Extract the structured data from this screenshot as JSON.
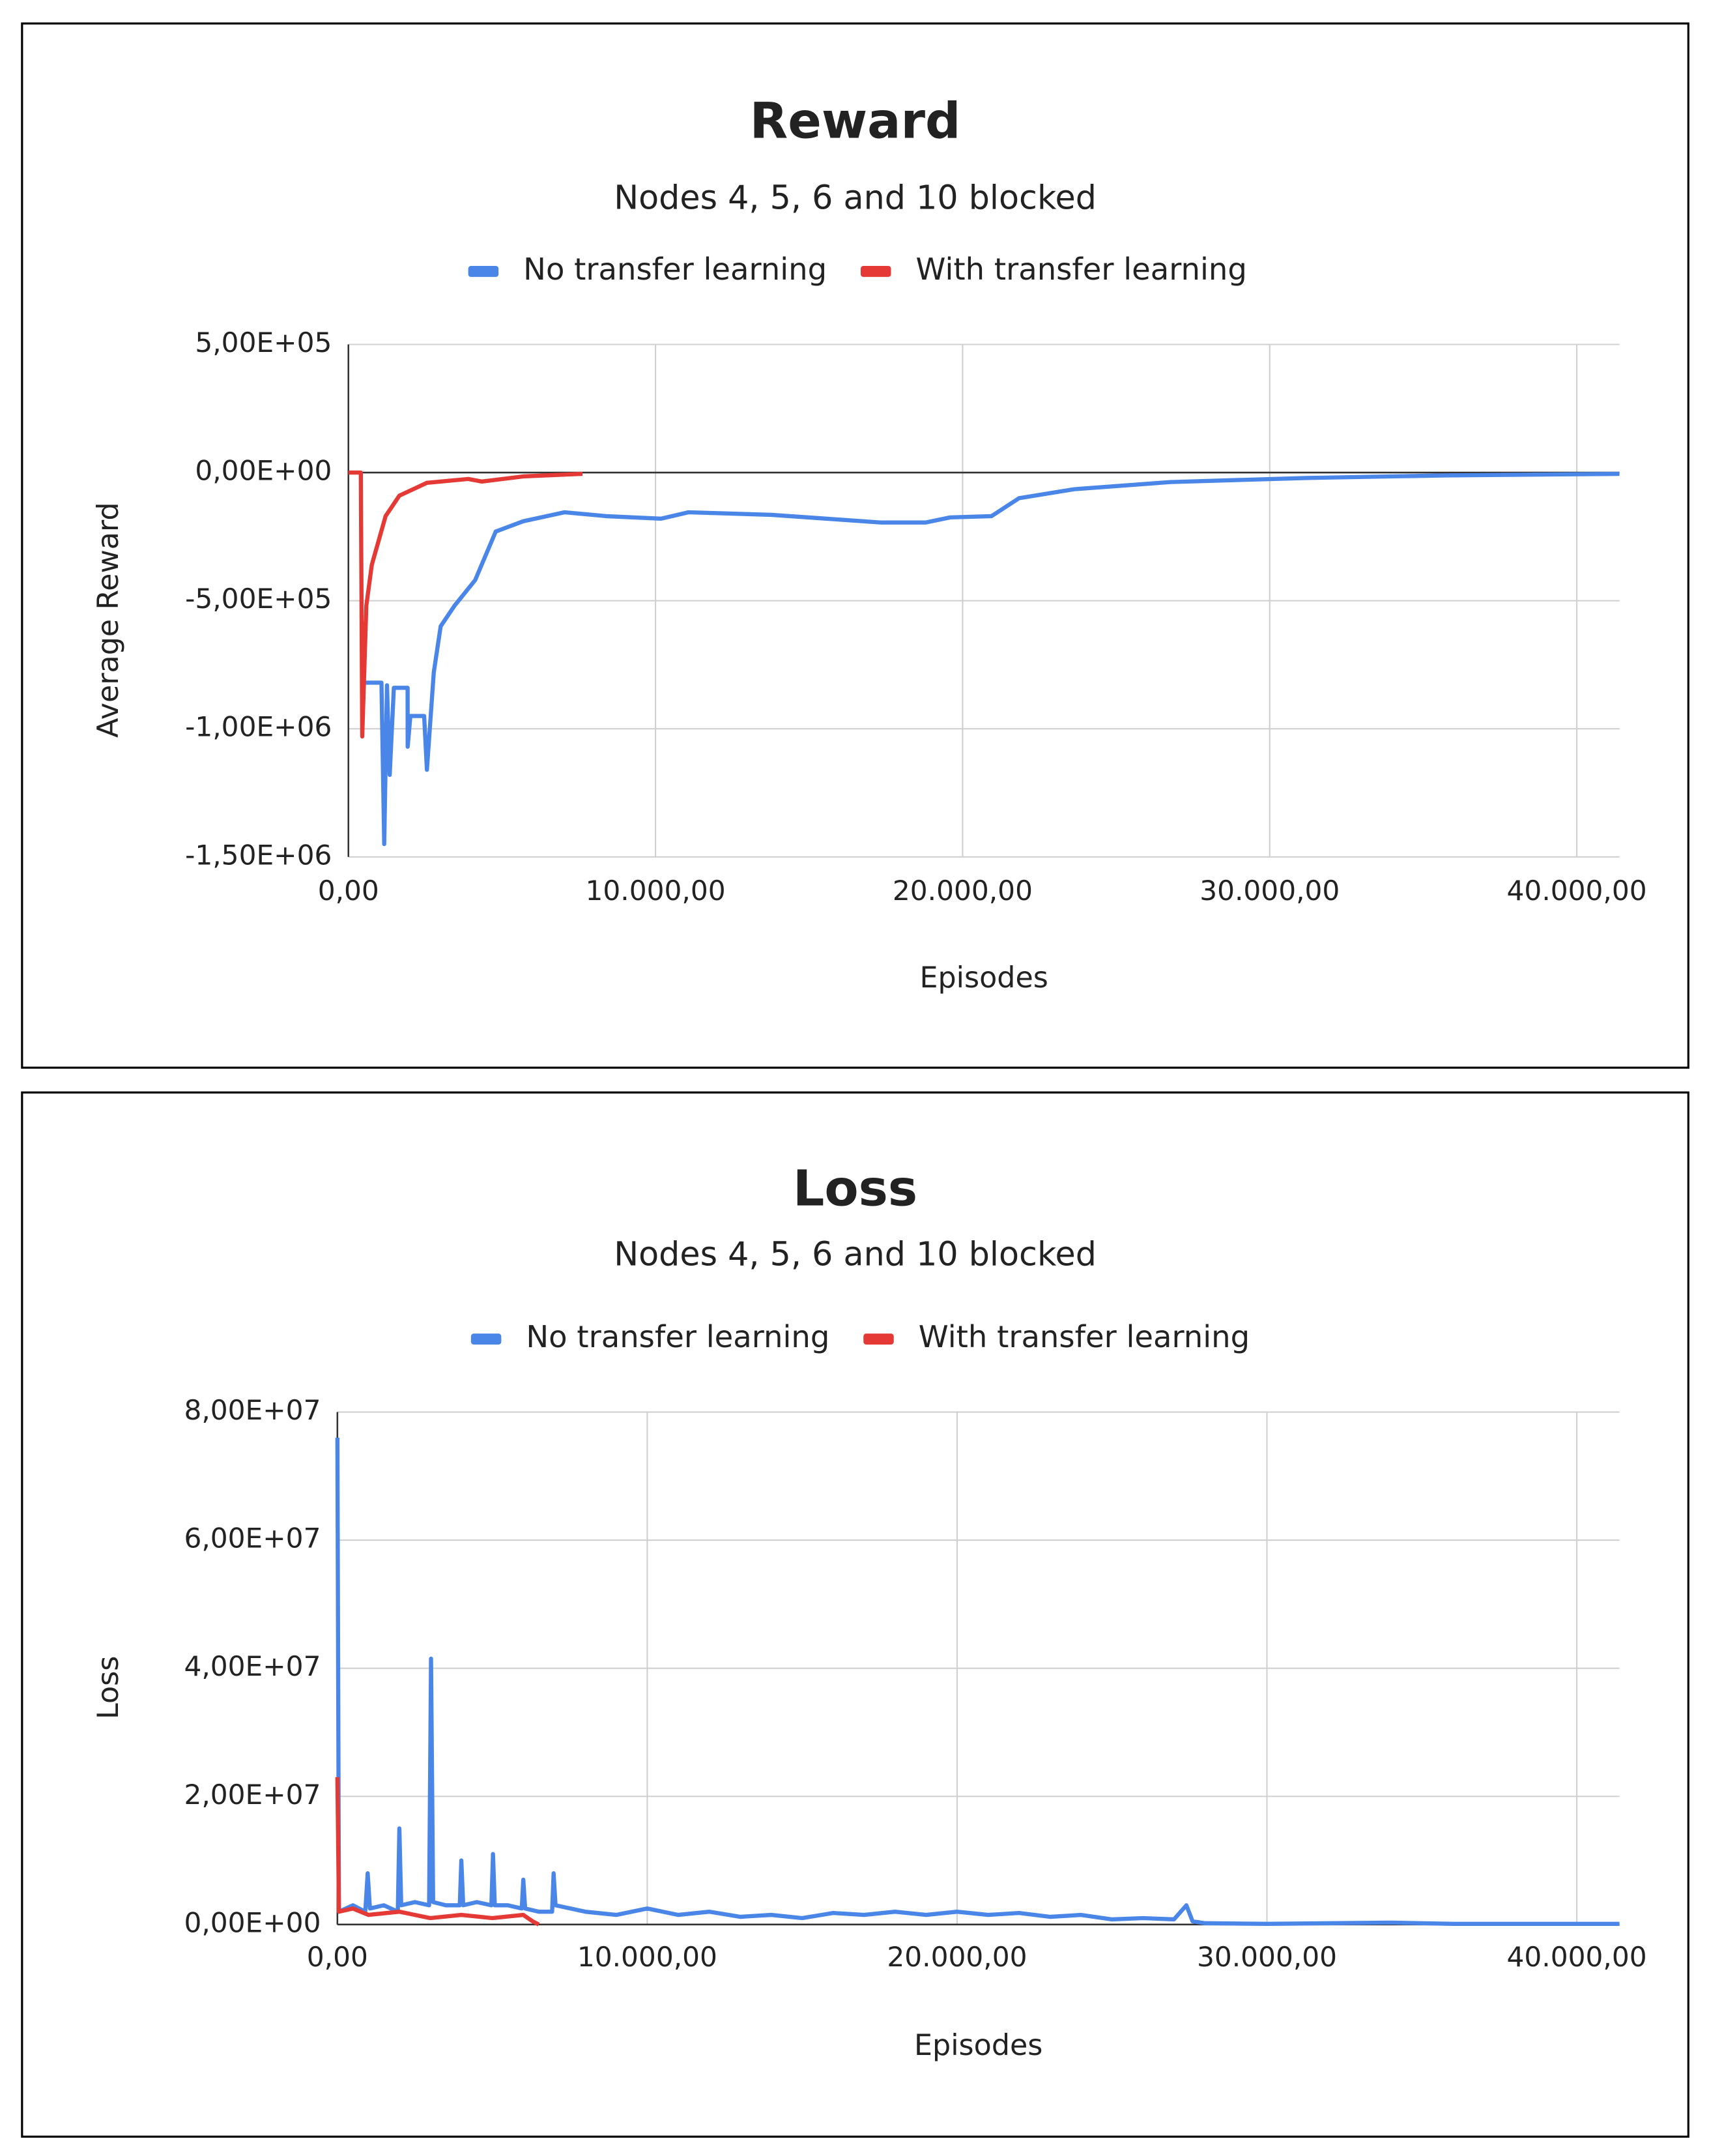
{
  "chart_data": [
    {
      "type": "line",
      "title": "Reward",
      "subtitle": "Nodes 4, 5, 6 and 10 blocked",
      "x_label": "Episodes",
      "y_label": "Average Reward",
      "legend": "top",
      "xlim": [
        0,
        41390
      ],
      "ylim": [
        -1500000,
        500000
      ],
      "xticks": [
        {
          "value": 0,
          "label": "0,00"
        },
        {
          "value": 10000,
          "label": "10.000,00"
        },
        {
          "value": 20000,
          "label": "20.000,00"
        },
        {
          "value": 30000,
          "label": "30.000,00"
        },
        {
          "value": 40000,
          "label": "40.000,00"
        }
      ],
      "yticks": [
        {
          "value": -1500000,
          "label": "-1,50E+06"
        },
        {
          "value": -1000000,
          "label": "-1,00E+06"
        },
        {
          "value": -500000,
          "label": "-5,00E+05"
        },
        {
          "value": 0,
          "label": "0,00E+00"
        },
        {
          "value": 500000,
          "label": "5,00E+05"
        }
      ],
      "grid": true,
      "series": [
        {
          "name": "No transfer learning",
          "color": "#4a86e8",
          "x": [
            404,
            1076,
            1166,
            1256,
            1345,
            1480,
            1928,
            1930,
            2018,
            2466,
            2556,
            2780,
            3004,
            3453,
            4126,
            4798,
            5695,
            7040,
            8386,
            10179,
            11076,
            13767,
            15561,
            17354,
            18789,
            19596,
            20942,
            21839,
            23632,
            26771,
            31256,
            35740,
            41390
          ],
          "values": [
            -820000,
            -820000,
            -1450000,
            -830000,
            -1180000,
            -840000,
            -840000,
            -1070000,
            -950000,
            -950000,
            -1160000,
            -780000,
            -600000,
            -520000,
            -420000,
            -230000,
            -190000,
            -155000,
            -170000,
            -180000,
            -155000,
            -165000,
            -180000,
            -195000,
            -195000,
            -175000,
            -170000,
            -100000,
            -65000,
            -37000,
            -21000,
            -11000,
            -5000
          ]
        },
        {
          "name": "With transfer learning",
          "color": "#e53935",
          "x": [
            0,
            404,
            450,
            583,
            762,
            1211,
            1659,
            2556,
            3901,
            4350,
            5695,
            7623
          ],
          "values": [
            0,
            0,
            -1030000,
            -520000,
            -360000,
            -170000,
            -90000,
            -40000,
            -25000,
            -35000,
            -15000,
            -5000
          ]
        }
      ]
    },
    {
      "type": "line",
      "title": "Loss",
      "subtitle": "Nodes 4, 5, 6 and 10 blocked",
      "x_label": "Episodes",
      "y_label": "Loss",
      "legend": "top",
      "xlim": [
        0,
        41378
      ],
      "ylim": [
        0,
        80000000
      ],
      "xticks": [
        {
          "value": 0,
          "label": "0,00"
        },
        {
          "value": 10000,
          "label": "10.000,00"
        },
        {
          "value": 20000,
          "label": "20.000,00"
        },
        {
          "value": 30000,
          "label": "30.000,00"
        },
        {
          "value": 40000,
          "label": "40.000,00"
        }
      ],
      "yticks": [
        {
          "value": 0,
          "label": "0,00E+00"
        },
        {
          "value": 20000000,
          "label": "2,00E+07"
        },
        {
          "value": 40000000,
          "label": "4,00E+07"
        },
        {
          "value": 60000000,
          "label": "6,00E+07"
        },
        {
          "value": 80000000,
          "label": "8,00E+07"
        }
      ],
      "grid": true,
      "series": [
        {
          "name": "No transfer learning",
          "color": "#4a86e8",
          "x": [
            0,
            50,
            500,
            900,
            978,
            1050,
            1500,
            1950,
            2000,
            2060,
            2500,
            2960,
            3022,
            3090,
            3500,
            3950,
            4000,
            4060,
            4500,
            4970,
            5022,
            5080,
            5500,
            5950,
            6000,
            6060,
            6500,
            6930,
            6978,
            7040,
            8000,
            9000,
            10000,
            11000,
            12000,
            13000,
            14000,
            15000,
            16000,
            17000,
            18000,
            19000,
            20000,
            21000,
            22000,
            23000,
            24000,
            25000,
            26000,
            27000,
            27400,
            27600,
            28000,
            30000,
            34000,
            36000,
            41378
          ],
          "values": [
            76000000,
            2000000,
            3000000,
            2000000,
            8000000,
            2500000,
            3000000,
            2000000,
            15000000,
            3000000,
            3500000,
            3000000,
            41500000,
            3500000,
            3000000,
            3000000,
            10000000,
            3000000,
            3500000,
            3000000,
            11000000,
            3000000,
            3000000,
            2500000,
            7000000,
            2500000,
            2000000,
            2000000,
            8000000,
            3000000,
            2000000,
            1500000,
            2500000,
            1500000,
            2000000,
            1200000,
            1500000,
            1000000,
            1800000,
            1500000,
            2000000,
            1500000,
            2000000,
            1500000,
            1800000,
            1200000,
            1500000,
            800000,
            1000000,
            800000,
            3000000,
            500000,
            200000,
            100000,
            300000,
            100000,
            100000
          ]
        },
        {
          "name": "With transfer learning",
          "color": "#e53935",
          "x": [
            0,
            50,
            500,
            1000,
            2000,
            3000,
            4000,
            5000,
            6000,
            6300,
            6500
          ],
          "values": [
            23000000,
            2000000,
            2500000,
            1500000,
            2000000,
            1000000,
            1500000,
            1000000,
            1500000,
            500000,
            0
          ]
        }
      ]
    }
  ]
}
